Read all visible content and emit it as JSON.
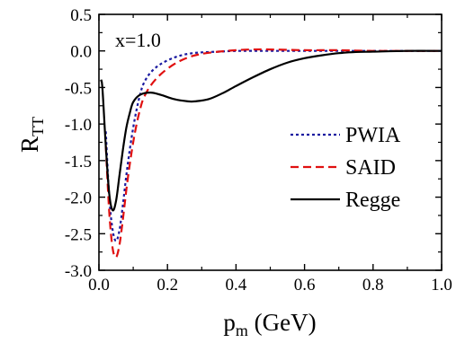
{
  "chart_data": {
    "type": "line",
    "title": "",
    "annotation": "x=1.0",
    "xlabel": {
      "base": "p",
      "sub": "m",
      "rest": " (GeV)"
    },
    "ylabel": {
      "base": "R",
      "sub": "TT"
    },
    "xlim": [
      0.0,
      1.0
    ],
    "ylim": [
      -3.0,
      0.5
    ],
    "xticks": [
      "0.0",
      "0.2",
      "0.4",
      "0.6",
      "0.8",
      "1.0"
    ],
    "yticks": [
      "0.5",
      "0.0",
      "-0.5",
      "-1.0",
      "-1.5",
      "-2.0",
      "-2.5",
      "-3.0"
    ],
    "grid": false,
    "legend_position": "right",
    "series": [
      {
        "name": "PWIA",
        "color": "#1a1aa0",
        "dash": "dotted",
        "points": [
          [
            0.02,
            -1.1
          ],
          [
            0.03,
            -2.0
          ],
          [
            0.04,
            -2.45
          ],
          [
            0.05,
            -2.6
          ],
          [
            0.06,
            -2.45
          ],
          [
            0.07,
            -2.1
          ],
          [
            0.08,
            -1.7
          ],
          [
            0.09,
            -1.35
          ],
          [
            0.1,
            -1.05
          ],
          [
            0.11,
            -0.8
          ],
          [
            0.12,
            -0.6
          ],
          [
            0.13,
            -0.45
          ],
          [
            0.15,
            -0.3
          ],
          [
            0.18,
            -0.18
          ],
          [
            0.22,
            -0.09
          ],
          [
            0.26,
            -0.04
          ],
          [
            0.3,
            -0.02
          ],
          [
            0.35,
            -0.01
          ],
          [
            0.4,
            0.0
          ],
          [
            0.5,
            0.0
          ],
          [
            0.6,
            0.0
          ],
          [
            0.7,
            0.0
          ],
          [
            0.8,
            0.0
          ],
          [
            0.9,
            0.0
          ],
          [
            1.0,
            0.0
          ]
        ]
      },
      {
        "name": "SAID",
        "color": "#e01010",
        "dash": "dashed",
        "points": [
          [
            0.02,
            -1.3
          ],
          [
            0.03,
            -2.2
          ],
          [
            0.04,
            -2.7
          ],
          [
            0.05,
            -2.82
          ],
          [
            0.06,
            -2.65
          ],
          [
            0.07,
            -2.3
          ],
          [
            0.08,
            -1.9
          ],
          [
            0.09,
            -1.55
          ],
          [
            0.1,
            -1.25
          ],
          [
            0.11,
            -1.0
          ],
          [
            0.12,
            -0.8
          ],
          [
            0.13,
            -0.65
          ],
          [
            0.15,
            -0.48
          ],
          [
            0.18,
            -0.32
          ],
          [
            0.22,
            -0.18
          ],
          [
            0.26,
            -0.09
          ],
          [
            0.3,
            -0.04
          ],
          [
            0.35,
            -0.01
          ],
          [
            0.4,
            0.01
          ],
          [
            0.45,
            0.02
          ],
          [
            0.5,
            0.02
          ],
          [
            0.6,
            0.01
          ],
          [
            0.7,
            0.01
          ],
          [
            0.8,
            0.0
          ],
          [
            0.9,
            0.0
          ],
          [
            1.0,
            0.0
          ]
        ]
      },
      {
        "name": "Regge",
        "color": "#000000",
        "dash": "solid",
        "points": [
          [
            0.005,
            -0.4
          ],
          [
            0.01,
            -0.5
          ],
          [
            0.02,
            -1.3
          ],
          [
            0.03,
            -1.95
          ],
          [
            0.04,
            -2.18
          ],
          [
            0.05,
            -2.05
          ],
          [
            0.06,
            -1.7
          ],
          [
            0.07,
            -1.35
          ],
          [
            0.08,
            -1.05
          ],
          [
            0.09,
            -0.85
          ],
          [
            0.1,
            -0.7
          ],
          [
            0.12,
            -0.6
          ],
          [
            0.15,
            -0.57
          ],
          [
            0.18,
            -0.6
          ],
          [
            0.22,
            -0.66
          ],
          [
            0.26,
            -0.69
          ],
          [
            0.28,
            -0.69
          ],
          [
            0.32,
            -0.66
          ],
          [
            0.36,
            -0.58
          ],
          [
            0.4,
            -0.48
          ],
          [
            0.45,
            -0.36
          ],
          [
            0.5,
            -0.25
          ],
          [
            0.55,
            -0.16
          ],
          [
            0.6,
            -0.1
          ],
          [
            0.65,
            -0.06
          ],
          [
            0.7,
            -0.03
          ],
          [
            0.75,
            -0.015
          ],
          [
            0.8,
            -0.01
          ],
          [
            0.9,
            0.0
          ],
          [
            1.0,
            0.0
          ]
        ]
      }
    ]
  }
}
